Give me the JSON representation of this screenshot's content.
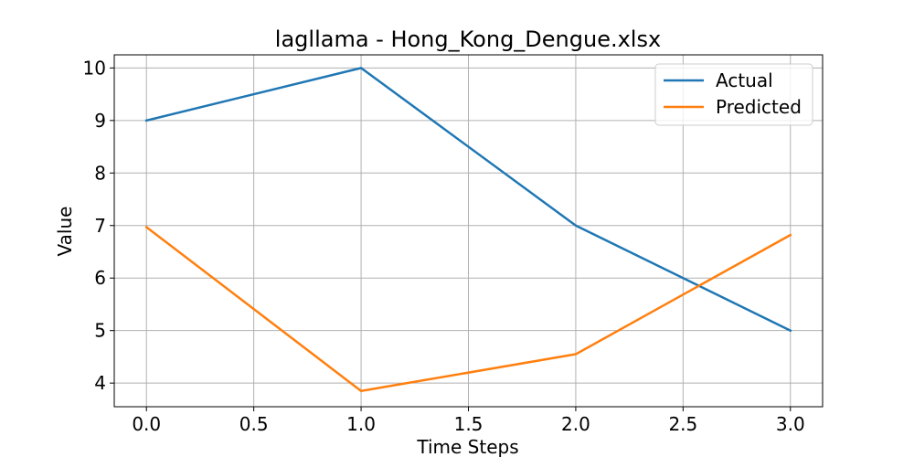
{
  "chart_data": {
    "type": "line",
    "title": "lagllama - Hong_Kong_Dengue.xlsx",
    "xlabel": "Time Steps",
    "ylabel": "Value",
    "x": [
      0,
      1,
      2,
      3
    ],
    "xlim": [
      -0.15,
      3.15
    ],
    "ylim": [
      3.55,
      10.25
    ],
    "xticks": [
      0.0,
      0.5,
      1.0,
      1.5,
      2.0,
      2.5,
      3.0
    ],
    "xtick_labels": [
      "0.0",
      "0.5",
      "1.0",
      "1.5",
      "2.0",
      "2.5",
      "3.0"
    ],
    "yticks": [
      4,
      5,
      6,
      7,
      8,
      9,
      10
    ],
    "ytick_labels": [
      "4",
      "5",
      "6",
      "7",
      "8",
      "9",
      "10"
    ],
    "grid": true,
    "legend_position": "top-right",
    "series": [
      {
        "name": "Actual",
        "color": "#1f77b4",
        "values": [
          9,
          10,
          7,
          5
        ]
      },
      {
        "name": "Predicted",
        "color": "#ff7f0e",
        "values": [
          6.97,
          3.85,
          4.55,
          6.82
        ]
      }
    ]
  }
}
